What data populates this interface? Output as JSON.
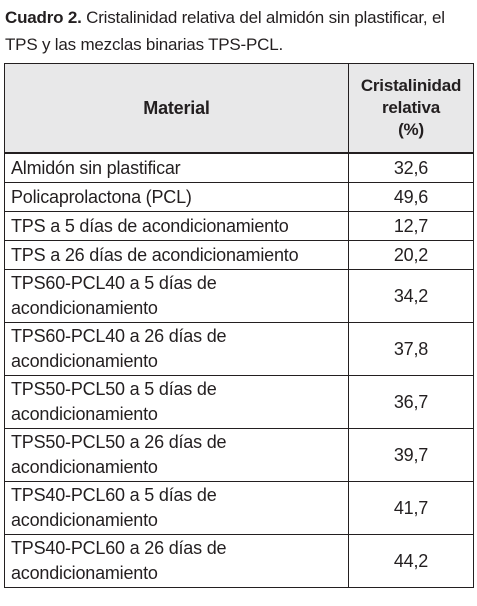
{
  "caption": {
    "label": "Cuadro 2.",
    "text": " Cristalinidad relativa del almidón sin plastificar, el TPS y las mezclas binarias TPS-PCL."
  },
  "table": {
    "header": {
      "material": "Material",
      "crist_line1": "Cristalinidad",
      "crist_line2": "relativa",
      "crist_line3": "(%)"
    },
    "rows": [
      {
        "material": "Almidón sin plastificar",
        "value": "32,6"
      },
      {
        "material": "Policaprolactona (PCL)",
        "value": "49,6"
      },
      {
        "material": "TPS a 5 días de acondicionamiento",
        "value": "12,7"
      },
      {
        "material": "TPS a 26 días de acondicionamiento",
        "value": "20,2"
      },
      {
        "material_line1": "TPS60-PCL40 a 5 días de",
        "material_line2": "acondicionamiento",
        "value": "34,2"
      },
      {
        "material_line1": "TPS60-PCL40 a 26 días de",
        "material_line2": "acondicionamiento",
        "value": "37,8"
      },
      {
        "material_line1": "TPS50-PCL50 a 5 días de",
        "material_line2": "acondicionamiento",
        "value": "36,7"
      },
      {
        "material_line1": "TPS50-PCL50 a 26 días de",
        "material_line2": "acondicionamiento",
        "value": "39,7"
      },
      {
        "material_line1": "TPS40-PCL60 a 5 días de",
        "material_line2": "acondicionamiento",
        "value": "41,7"
      },
      {
        "material_line1": "TPS40-PCL60 a 26 días de",
        "material_line2": "acondicionamiento",
        "value": "44,2"
      }
    ]
  }
}
